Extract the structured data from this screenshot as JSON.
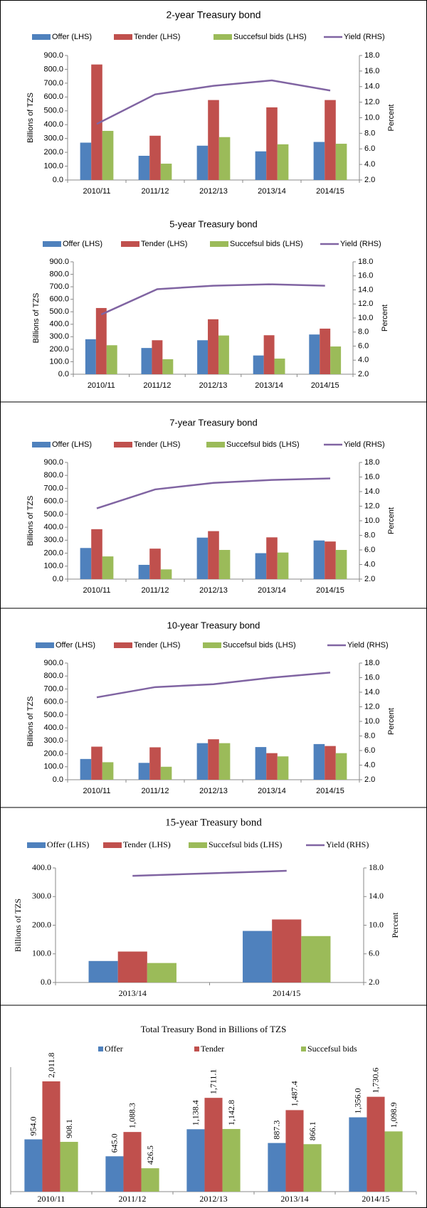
{
  "chart_data": [
    {
      "type": "bar_line",
      "title": "2-year Treasury bond",
      "categories": [
        "2010/11",
        "2011/12",
        "2012/13",
        "2013/14",
        "2014/15"
      ],
      "series": [
        {
          "name": "Offer (LHS)",
          "color": "#4f81bd",
          "values": [
            270,
            175,
            248,
            207,
            275
          ]
        },
        {
          "name": "Tender (LHS)",
          "color": "#c0504d",
          "values": [
            835,
            320,
            578,
            525,
            578
          ]
        },
        {
          "name": "Succefsul bids (LHS)",
          "color": "#9bbb59",
          "values": [
            355,
            118,
            310,
            258,
            262
          ]
        },
        {
          "name": "Yield (RHS)",
          "color": "#8064a2",
          "axis": "y2",
          "values": [
            9.2,
            13.0,
            14.1,
            14.8,
            13.5
          ]
        }
      ],
      "ylabel": "Billions of TZS",
      "y2label": "Percent",
      "ylim": [
        0,
        900
      ],
      "yticks": [
        {
          "value": 0,
          "label": "0.0"
        },
        {
          "value": 100,
          "label": "100.0"
        },
        {
          "value": 200,
          "label": "200.0"
        },
        {
          "value": 300,
          "label": "300.0"
        },
        {
          "value": 400,
          "label": "400.0"
        },
        {
          "value": 500,
          "label": "500.0"
        },
        {
          "value": 600,
          "label": "600.0"
        },
        {
          "value": 700,
          "label": "700.0"
        },
        {
          "value": 800,
          "label": "800.0"
        },
        {
          "value": 900,
          "label": "900.0"
        }
      ],
      "y2lim": [
        2,
        18
      ],
      "y2ticks": [
        {
          "value": 2,
          "label": "2.0"
        },
        {
          "value": 4,
          "label": "4.0"
        },
        {
          "value": 6,
          "label": "6.0"
        },
        {
          "value": 8,
          "label": "8.0"
        },
        {
          "value": 10,
          "label": "10.0"
        },
        {
          "value": 12,
          "label": "12.0"
        },
        {
          "value": 14,
          "label": "14.0"
        },
        {
          "value": 16,
          "label": "16.0"
        },
        {
          "value": 18,
          "label": "18.0"
        }
      ]
    },
    {
      "type": "bar_line",
      "title": "5-year Treasury bond",
      "categories": [
        "2010/11",
        "2011/12",
        "2012/13",
        "2013/14",
        "2014/15"
      ],
      "series": [
        {
          "name": "Offer (LHS)",
          "color": "#4f81bd",
          "values": [
            280,
            210,
            272,
            150,
            318
          ]
        },
        {
          "name": "Tender (LHS)",
          "color": "#c0504d",
          "values": [
            530,
            272,
            440,
            312,
            365
          ]
        },
        {
          "name": "Succefsul bids (LHS)",
          "color": "#9bbb59",
          "values": [
            232,
            120,
            310,
            125,
            222
          ]
        },
        {
          "name": "Yield (RHS)",
          "color": "#8064a2",
          "axis": "y2",
          "values": [
            10.5,
            14.1,
            14.6,
            14.8,
            14.6
          ]
        }
      ],
      "ylabel": "Billions of TZS",
      "y2label": "Percent",
      "ylim": [
        0,
        900
      ],
      "yticks": [
        {
          "value": 0,
          "label": "0.0"
        },
        {
          "value": 100,
          "label": "100.0"
        },
        {
          "value": 200,
          "label": "200.0"
        },
        {
          "value": 300,
          "label": "300.0"
        },
        {
          "value": 400,
          "label": "400.0"
        },
        {
          "value": 500,
          "label": "500.0"
        },
        {
          "value": 600,
          "label": "600.0"
        },
        {
          "value": 700,
          "label": "700.0"
        },
        {
          "value": 800,
          "label": "800.0"
        },
        {
          "value": 900,
          "label": "900.0"
        }
      ],
      "y2lim": [
        2,
        18
      ],
      "y2ticks": [
        {
          "value": 2,
          "label": "2.0"
        },
        {
          "value": 4,
          "label": "4.0"
        },
        {
          "value": 6,
          "label": "6.0"
        },
        {
          "value": 8,
          "label": "8.0"
        },
        {
          "value": 10,
          "label": "10.0"
        },
        {
          "value": 12,
          "label": "12.0"
        },
        {
          "value": 14,
          "label": "14.0"
        },
        {
          "value": 16,
          "label": "16.0"
        },
        {
          "value": 18,
          "label": "18.0"
        }
      ]
    },
    {
      "type": "bar_line",
      "title": "7-year Treasury bond",
      "categories": [
        "2010/11",
        "2011/12",
        "2012/13",
        "2013/14",
        "2014/15"
      ],
      "series": [
        {
          "name": "Offer (LHS)",
          "color": "#4f81bd",
          "values": [
            240,
            110,
            320,
            200,
            298
          ]
        },
        {
          "name": "Tender (LHS)",
          "color": "#c0504d",
          "values": [
            385,
            235,
            370,
            322,
            290
          ]
        },
        {
          "name": "Succefsul bids (LHS)",
          "color": "#9bbb59",
          "values": [
            175,
            75,
            225,
            205,
            225
          ]
        },
        {
          "name": "Yield (RHS)",
          "color": "#8064a2",
          "axis": "y2",
          "values": [
            11.7,
            14.3,
            15.2,
            15.6,
            15.8
          ]
        }
      ],
      "ylabel": "Billions of TZS",
      "y2label": "Percent",
      "ylim": [
        0,
        900
      ],
      "yticks": [
        {
          "value": 0,
          "label": "0.0"
        },
        {
          "value": 100,
          "label": "100.0"
        },
        {
          "value": 200,
          "label": "200.0"
        },
        {
          "value": 300,
          "label": "300.0"
        },
        {
          "value": 400,
          "label": "400.0"
        },
        {
          "value": 500,
          "label": "500.0"
        },
        {
          "value": 600,
          "label": "600.0"
        },
        {
          "value": 700,
          "label": "700.0"
        },
        {
          "value": 800,
          "label": "800.0"
        },
        {
          "value": 900,
          "label": "900.0"
        }
      ],
      "y2lim": [
        2,
        18
      ],
      "y2ticks": [
        {
          "value": 2,
          "label": "2.0"
        },
        {
          "value": 4,
          "label": "4.0"
        },
        {
          "value": 6,
          "label": "6.0"
        },
        {
          "value": 8,
          "label": "8.0"
        },
        {
          "value": 10,
          "label": "10.0"
        },
        {
          "value": 12,
          "label": "12.0"
        },
        {
          "value": 14,
          "label": "14.0"
        },
        {
          "value": 16,
          "label": "16.0"
        },
        {
          "value": 18,
          "label": "18.0"
        }
      ]
    },
    {
      "type": "bar_line",
      "title": "10-year Treasury bond",
      "categories": [
        "2010/11",
        "2011/12",
        "2012/13",
        "2013/14",
        "2014/15"
      ],
      "series": [
        {
          "name": "Offer (LHS)",
          "color": "#4f81bd",
          "values": [
            160,
            130,
            282,
            252,
            275
          ]
        },
        {
          "name": "Tender (LHS)",
          "color": "#c0504d",
          "values": [
            255,
            250,
            312,
            205,
            260
          ]
        },
        {
          "name": "Succefsul bids (LHS)",
          "color": "#9bbb59",
          "values": [
            135,
            100,
            282,
            180,
            205
          ]
        },
        {
          "name": "Yield (RHS)",
          "color": "#8064a2",
          "axis": "y2",
          "values": [
            13.3,
            14.7,
            15.1,
            16.0,
            16.7
          ]
        }
      ],
      "ylabel": "Billions of TZS",
      "y2label": "Percent",
      "ylim": [
        0,
        900
      ],
      "yticks": [
        {
          "value": 0,
          "label": "0.0"
        },
        {
          "value": 100,
          "label": "100.0"
        },
        {
          "value": 200,
          "label": "200.0"
        },
        {
          "value": 300,
          "label": "300.0"
        },
        {
          "value": 400,
          "label": "400.0"
        },
        {
          "value": 500,
          "label": "500.0"
        },
        {
          "value": 600,
          "label": "600.0"
        },
        {
          "value": 700,
          "label": "700.0"
        },
        {
          "value": 800,
          "label": "800.0"
        },
        {
          "value": 900,
          "label": "900.0"
        }
      ],
      "y2lim": [
        2,
        18
      ],
      "y2ticks": [
        {
          "value": 2,
          "label": "2.0"
        },
        {
          "value": 4,
          "label": "4.0"
        },
        {
          "value": 6,
          "label": "6.0"
        },
        {
          "value": 8,
          "label": "8.0"
        },
        {
          "value": 10,
          "label": "10.0"
        },
        {
          "value": 12,
          "label": "12.0"
        },
        {
          "value": 14,
          "label": "14.0"
        },
        {
          "value": 16,
          "label": "16.0"
        },
        {
          "value": 18,
          "label": "18.0"
        }
      ]
    },
    {
      "type": "bar_line",
      "title": "15-year Treasury bond",
      "categories": [
        "2013/14",
        "2014/15"
      ],
      "series": [
        {
          "name": "Offer (LHS)",
          "color": "#4f81bd",
          "values": [
            75,
            180
          ]
        },
        {
          "name": "Tender (LHS)",
          "color": "#c0504d",
          "values": [
            108,
            220
          ]
        },
        {
          "name": "Succefsul bids (LHS)",
          "color": "#9bbb59",
          "values": [
            68,
            162
          ]
        },
        {
          "name": "Yield (RHS)",
          "color": "#8064a2",
          "axis": "y2",
          "values": [
            16.9,
            17.6
          ]
        }
      ],
      "ylabel": "Billions of TZS",
      "y2label": "Percent",
      "ylim": [
        0,
        400
      ],
      "yticks": [
        {
          "value": 0,
          "label": "0.0"
        },
        {
          "value": 100,
          "label": "100.0"
        },
        {
          "value": 200,
          "label": "200.0"
        },
        {
          "value": 300,
          "label": "300.0"
        },
        {
          "value": 400,
          "label": "400.0"
        }
      ],
      "y2lim": [
        2,
        18
      ],
      "y2ticks": [
        {
          "value": 2,
          "label": "2.0"
        },
        {
          "value": 6,
          "label": "6.0"
        },
        {
          "value": 10,
          "label": "10.0"
        },
        {
          "value": 14,
          "label": "14.0"
        },
        {
          "value": 18,
          "label": "18.0"
        }
      ]
    },
    {
      "type": "bar",
      "title": "Total Treasury Bond in Billions of TZS",
      "categories": [
        "2010/11",
        "2011/12",
        "2012/13",
        "2013/14",
        "2014/15"
      ],
      "series": [
        {
          "name": "Offer",
          "color": "#4f81bd",
          "values": [
            954.0,
            645.0,
            1138.4,
            887.3,
            1356.0
          ],
          "value_labels": [
            "954.0",
            "645.0",
            "1,138.4",
            "887.3",
            "1,356.0"
          ]
        },
        {
          "name": "Tender",
          "color": "#c0504d",
          "values": [
            2011.8,
            1088.3,
            1711.1,
            1487.4,
            1730.6
          ],
          "value_labels": [
            "2,011.8",
            "1,088.3",
            "1,711.1",
            "1,487.4",
            "1,730.6"
          ]
        },
        {
          "name": "Succefsul bids",
          "color": "#9bbb59",
          "values": [
            908.1,
            426.5,
            1142.8,
            866.1,
            1098.9
          ],
          "value_labels": [
            "908.1",
            "426.5",
            "1,142.8",
            "866.1",
            "1,098.9"
          ]
        }
      ]
    }
  ]
}
